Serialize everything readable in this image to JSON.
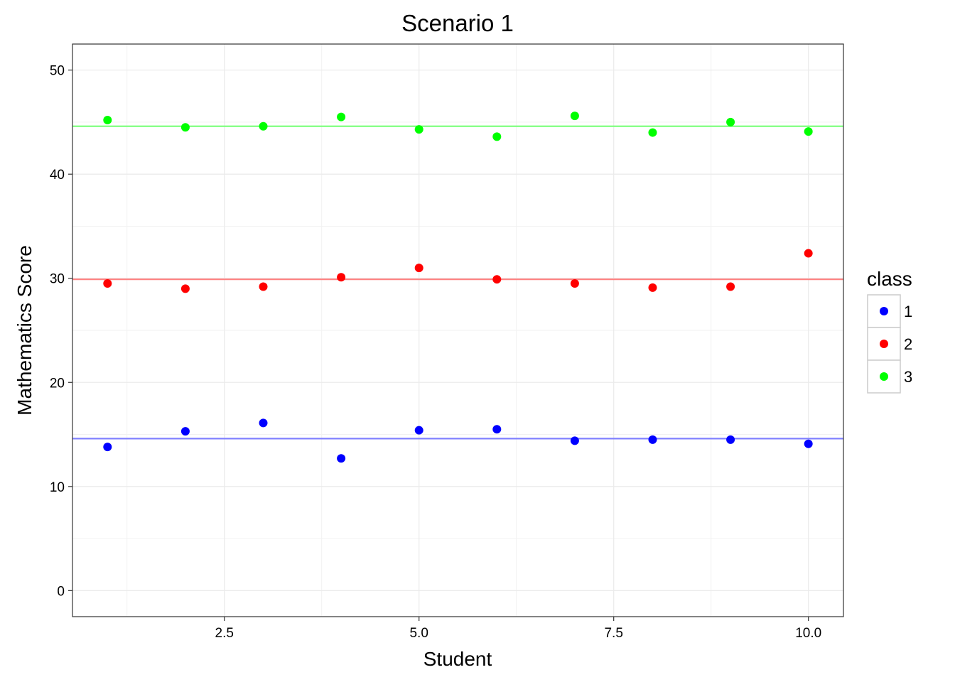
{
  "chart_data": {
    "type": "scatter",
    "title": "Scenario 1",
    "xlabel": "Student",
    "ylabel": "Mathematics Score",
    "xlim": [
      0.55,
      10.45
    ],
    "ylim": [
      -2.5,
      52.5
    ],
    "x_ticks": [
      2.5,
      5.0,
      7.5,
      10.0
    ],
    "x_tick_labels": [
      "2.5",
      "5.0",
      "7.5",
      "10.0"
    ],
    "y_ticks": [
      0,
      10,
      20,
      30,
      40,
      50
    ],
    "y_tick_labels": [
      "0",
      "10",
      "20",
      "30",
      "40",
      "50"
    ],
    "grid": true,
    "legend": {
      "title": "class",
      "placement": "right"
    },
    "x": [
      1,
      2,
      3,
      4,
      5,
      6,
      7,
      8,
      9,
      10
    ],
    "series": [
      {
        "name": "1",
        "color": "#0000ff",
        "line_color": "#8080ff",
        "mean": 14.6,
        "values": [
          13.8,
          15.3,
          16.1,
          12.7,
          15.4,
          15.5,
          14.4,
          14.5,
          14.5,
          14.1
        ]
      },
      {
        "name": "2",
        "color": "#ff0000",
        "line_color": "#ff8080",
        "mean": 29.9,
        "values": [
          29.5,
          29.0,
          29.2,
          30.1,
          31.0,
          29.9,
          29.5,
          29.1,
          29.2,
          32.4
        ]
      },
      {
        "name": "3",
        "color": "#00ff00",
        "line_color": "#80ff80",
        "mean": 44.6,
        "values": [
          45.2,
          44.5,
          44.6,
          45.5,
          44.3,
          43.6,
          45.6,
          44.0,
          45.0,
          44.1
        ]
      }
    ]
  }
}
